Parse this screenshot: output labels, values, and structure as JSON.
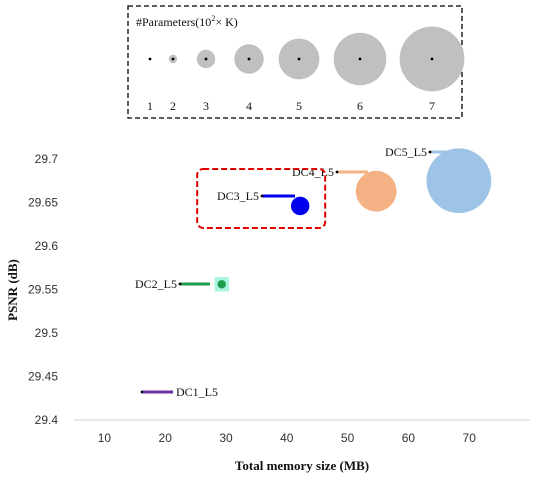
{
  "chart_data": {
    "type": "scatter",
    "xlabel": "Total memory size (MB)",
    "ylabel": "PSNR (dB)",
    "xlim": [
      5,
      80
    ],
    "ylim": [
      29.4,
      29.7
    ],
    "xticks": [
      "10",
      "20",
      "30",
      "40",
      "50",
      "60",
      "70"
    ],
    "yticks": [
      "29.4",
      "29.45",
      "29.5",
      "29.55",
      "29.6",
      "29.65",
      "29.7"
    ],
    "grid": false,
    "points": [
      {
        "name": "DC1_L5",
        "x": 16.5,
        "y": 29.432,
        "parameters": 1,
        "color": "#7030a0"
      },
      {
        "name": "DC2_L5",
        "x": 29.3,
        "y": 29.556,
        "parameters": 2,
        "color": "#1e9e4a"
      },
      {
        "name": "DC3_L5",
        "x": 42.2,
        "y": 29.646,
        "parameters": 3,
        "color": "#0000ee"
      },
      {
        "name": "DC4_L5",
        "x": 54.7,
        "y": 29.663,
        "parameters": 5,
        "color": "#f4b183"
      },
      {
        "name": "DC5_L5",
        "x": 68.3,
        "y": 29.675,
        "parameters": 7,
        "color": "#9dc3e6"
      }
    ],
    "highlight": "DC3_L5",
    "legend": {
      "title": "#Parameters(10",
      "title_sup": "2",
      "title_suffix": "× K)",
      "placement": "top",
      "sizes": [
        "1",
        "2",
        "3",
        "4",
        "5",
        "6",
        "7"
      ]
    }
  }
}
